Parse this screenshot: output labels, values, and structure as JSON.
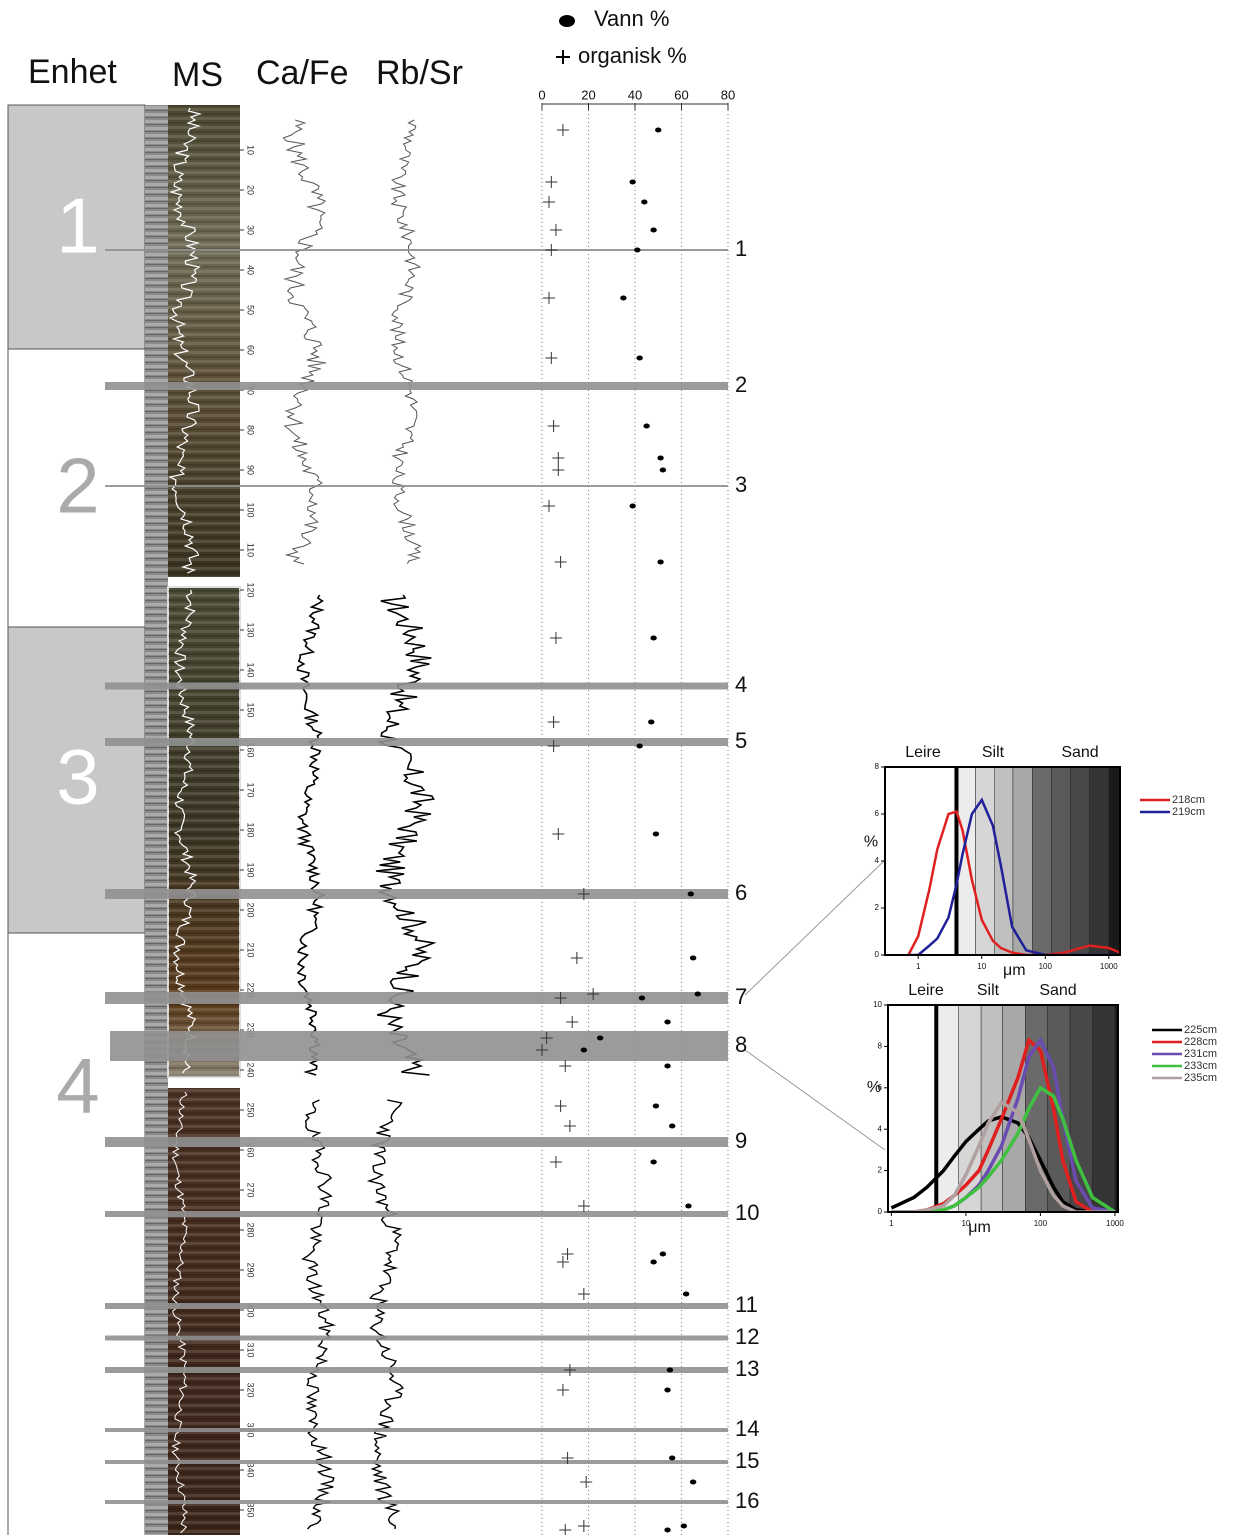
{
  "headers": {
    "enhet": "Enhet",
    "ms": "MS",
    "cafe": "Ca/Fe",
    "rbsr": "Rb/Sr"
  },
  "units": [
    "1",
    "2",
    "3",
    "4"
  ],
  "horizons": [
    {
      "label": "1",
      "depth": 35
    },
    {
      "label": "2",
      "depth": 69
    },
    {
      "label": "3",
      "depth": 94
    },
    {
      "label": "4",
      "depth": 144
    },
    {
      "label": "5",
      "depth": 158
    },
    {
      "label": "6",
      "depth": 196
    },
    {
      "label": "7",
      "depth": 222
    },
    {
      "label": "8",
      "depth": 234
    },
    {
      "label": "9",
      "depth": 258
    },
    {
      "label": "10",
      "depth": 276
    },
    {
      "label": "11",
      "depth": 299
    },
    {
      "label": "12",
      "depth": 307
    },
    {
      "label": "13",
      "depth": 315
    },
    {
      "label": "14",
      "depth": 330
    },
    {
      "label": "15",
      "depth": 338
    },
    {
      "label": "16",
      "depth": 348
    }
  ],
  "chart_data": [
    {
      "type": "scatter",
      "xlim": [
        0,
        80
      ],
      "xticks": [
        0,
        20,
        40,
        60,
        80
      ],
      "grid": true,
      "ylim": [
        0,
        355
      ],
      "depth_ticks": [
        10,
        20,
        30,
        40,
        50,
        60,
        70,
        80,
        90,
        100,
        110,
        120,
        130,
        140,
        150,
        160,
        170,
        180,
        190,
        200,
        210,
        220,
        230,
        240,
        250,
        260,
        270,
        280,
        290,
        300,
        310,
        320,
        330,
        340,
        350
      ],
      "depth": [
        5,
        18,
        23,
        30,
        35,
        47,
        62,
        79,
        87,
        90,
        99,
        113,
        132,
        153,
        159,
        181,
        196,
        212,
        221,
        222,
        228,
        232,
        235,
        239,
        249,
        254,
        263,
        274,
        286,
        288,
        296,
        315,
        320,
        337,
        343,
        354,
        355
      ],
      "series": [
        {
          "name": "Vann %",
          "color": "#000000",
          "marker": "dot",
          "values": [
            50,
            39,
            44,
            48,
            41,
            35,
            42,
            45,
            51,
            52,
            39,
            51,
            48,
            47,
            42,
            49,
            64,
            65,
            67,
            43,
            54,
            25,
            18,
            54,
            49,
            56,
            48,
            63,
            52,
            48,
            62,
            55,
            54,
            56,
            65,
            61,
            54
          ]
        },
        {
          "name": "organisk %",
          "color": "#333333",
          "marker": "plus",
          "values": [
            9,
            4,
            3,
            6,
            4,
            3,
            4,
            5,
            7,
            7,
            3,
            8,
            6,
            5,
            5,
            7,
            18,
            15,
            22,
            8,
            13,
            2,
            0,
            10,
            8,
            12,
            6,
            18,
            11,
            9,
            18,
            12,
            9,
            11,
            19,
            18,
            10
          ]
        }
      ]
    },
    {
      "type": "line",
      "log_x": true,
      "zones": [
        "Leire",
        "Silt",
        "Sand"
      ],
      "xlabel": "μm",
      "ylabel": "%",
      "xlim": [
        0.3,
        1500
      ],
      "ylim": [
        0,
        8
      ],
      "yticks": [
        0,
        2,
        4,
        6,
        8
      ],
      "xticks": [
        1,
        10,
        100,
        1000
      ],
      "x": [
        0.7,
        1,
        1.5,
        2,
        3,
        4,
        5,
        7,
        10,
        15,
        20,
        30,
        50,
        100,
        200,
        500,
        1000,
        1500
      ],
      "series": [
        {
          "name": "218cm",
          "color": "#e02020",
          "values": [
            0,
            0.8,
            2.8,
            4.5,
            6,
            6.1,
            5.3,
            3.2,
            1.5,
            0.6,
            0.3,
            0.1,
            0,
            0,
            0.1,
            0.4,
            0.3,
            0.1
          ]
        },
        {
          "name": "219cm",
          "color": "#20209a",
          "values": [
            0,
            0,
            0.4,
            0.7,
            1.6,
            3,
            4.3,
            6,
            6.6,
            5.5,
            3.8,
            1.2,
            0.2,
            0,
            0,
            0,
            0,
            0
          ]
        }
      ]
    },
    {
      "type": "line",
      "log_x": true,
      "zones": [
        "Leire",
        "Silt",
        "Sand"
      ],
      "xlabel": "μm",
      "ylabel": "%",
      "xlim": [
        0.9,
        1100
      ],
      "ylim": [
        0,
        10
      ],
      "yticks": [
        0,
        2,
        4,
        6,
        8,
        10
      ],
      "xticks": [
        1,
        10,
        100,
        1000
      ],
      "x": [
        1,
        2,
        3,
        5,
        7,
        10,
        15,
        20,
        30,
        50,
        70,
        100,
        150,
        200,
        300,
        500,
        1000
      ],
      "series": [
        {
          "name": "225cm",
          "color": "#000000",
          "values": [
            0.2,
            0.7,
            1.2,
            2,
            2.7,
            3.4,
            4,
            4.4,
            4.6,
            4.3,
            3.6,
            2.5,
            1.2,
            0.5,
            0.1,
            0,
            0
          ]
        },
        {
          "name": "228cm",
          "color": "#e02020",
          "values": [
            0,
            0,
            0.1,
            0.4,
            0.8,
            1.3,
            2,
            3,
            4.5,
            6.5,
            8.3,
            7.8,
            5,
            2.5,
            0.5,
            0,
            0
          ]
        },
        {
          "name": "231cm",
          "color": "#6a4cb0",
          "values": [
            0,
            0,
            0,
            0.1,
            0.3,
            0.7,
            1.3,
            2,
            3.2,
            5.5,
            7.5,
            8.3,
            7,
            4.5,
            1.5,
            0.2,
            0
          ]
        },
        {
          "name": "233cm",
          "color": "#40c040",
          "values": [
            0,
            0,
            0,
            0.1,
            0.3,
            0.7,
            1.2,
            1.7,
            2.5,
            3.8,
            5,
            6,
            5.6,
            4.5,
            2.5,
            0.7,
            0
          ]
        },
        {
          "name": "235cm",
          "color": "#b0a0a0",
          "values": [
            0,
            0,
            0.1,
            0.3,
            0.8,
            1.8,
            3.2,
            4.3,
            5.3,
            4.8,
            3.5,
            2,
            0.8,
            0.3,
            0,
            0,
            0
          ]
        }
      ]
    }
  ]
}
